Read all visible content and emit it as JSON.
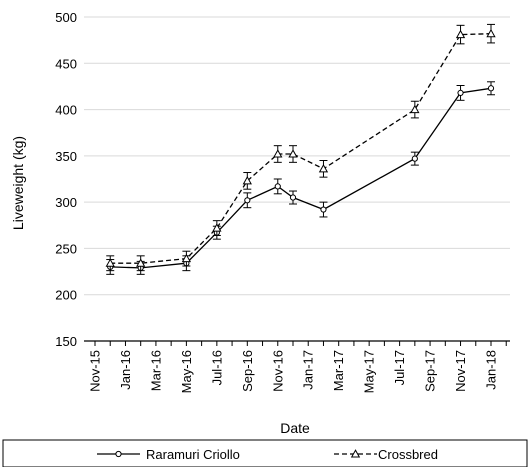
{
  "chart_data": {
    "type": "line",
    "xlabel": "Date",
    "ylabel": "Liveweight (kg)",
    "ylim": [
      150,
      500
    ],
    "y_ticks": [
      150,
      200,
      250,
      300,
      350,
      400,
      450,
      500
    ],
    "x_ticks": [
      "Nov-15",
      "Jan-16",
      "Mar-16",
      "May-16",
      "Jul-16",
      "Sep-16",
      "Nov-16",
      "Jan-17",
      "Mar-17",
      "May-17",
      "Jul-17",
      "Sep-17",
      "Nov-17",
      "Jan-18"
    ],
    "grid": "horizontal",
    "legend_position": "bottom",
    "series": [
      {
        "name": "Raramuri Criollo",
        "line_style": "solid",
        "marker": "circle",
        "x": [
          "Dec-15",
          "Feb-16",
          "May-16",
          "Jul-16",
          "Sep-16",
          "Nov-16",
          "Dec-16",
          "Feb-17",
          "Aug-17",
          "Nov-17",
          "Jan-18"
        ],
        "values": [
          230,
          229,
          234,
          267,
          302,
          317,
          305,
          292,
          347,
          418,
          423
        ],
        "error": [
          8,
          7,
          8,
          7,
          8,
          8,
          7,
          8,
          7,
          8,
          7
        ]
      },
      {
        "name": "Crossbred",
        "line_style": "dashed",
        "marker": "triangle",
        "x": [
          "Dec-15",
          "Feb-16",
          "May-16",
          "Jul-16",
          "Sep-16",
          "Nov-16",
          "Dec-16",
          "Feb-17",
          "Aug-17",
          "Nov-17",
          "Jan-18"
        ],
        "values": [
          234,
          234,
          239,
          272,
          323,
          352,
          352,
          336,
          400,
          481,
          482
        ],
        "error": [
          8,
          8,
          8,
          8,
          9,
          9,
          9,
          9,
          9,
          10,
          10
        ]
      }
    ]
  }
}
